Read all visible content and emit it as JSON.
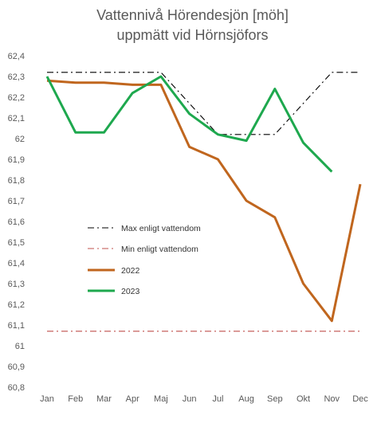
{
  "chart_data": {
    "type": "line",
    "title_lines": [
      "Vattennivå Hörendesjön [möh]",
      "uppmätt vid Hörnsjöfors"
    ],
    "categories": [
      "Jan",
      "Feb",
      "Mar",
      "Apr",
      "Maj",
      "Jun",
      "Jul",
      "Aug",
      "Sep",
      "Okt",
      "Nov",
      "Dec"
    ],
    "ylim": [
      60.8,
      62.4
    ],
    "yticks": [
      "62,4",
      "62,3",
      "62,2",
      "62,1",
      "62",
      "61,9",
      "61,8",
      "61,7",
      "61,6",
      "61,5",
      "61,4",
      "61,3",
      "61,2",
      "61,1",
      "61",
      "60,9",
      "60,8"
    ],
    "ytick_values": [
      62.4,
      62.3,
      62.2,
      62.1,
      62.0,
      61.9,
      61.8,
      61.7,
      61.6,
      61.5,
      61.4,
      61.3,
      61.2,
      61.1,
      61.0,
      60.9,
      60.8
    ],
    "grid": false,
    "legend_placement": "left",
    "series": [
      {
        "name": "Max enligt vattendom",
        "color": "#000000",
        "style": "dash-dot",
        "values": [
          62.32,
          62.32,
          62.32,
          62.32,
          62.32,
          62.17,
          62.02,
          62.02,
          62.02,
          62.17,
          62.32,
          62.32
        ]
      },
      {
        "name": "Min enligt vattendom",
        "color": "#c0504d",
        "style": "dash-dot",
        "values": [
          61.07,
          61.07,
          61.07,
          61.07,
          61.07,
          61.07,
          61.07,
          61.07,
          61.07,
          61.07,
          61.07,
          61.07
        ]
      },
      {
        "name": "2022",
        "color": "#c0661e",
        "style": "solid",
        "values": [
          62.28,
          62.27,
          62.27,
          62.26,
          62.26,
          61.96,
          61.9,
          61.7,
          61.62,
          61.3,
          61.12,
          61.78
        ]
      },
      {
        "name": "2023",
        "color": "#1ea84e",
        "style": "solid",
        "values": [
          62.3,
          62.03,
          62.03,
          62.22,
          62.3,
          62.12,
          62.02,
          61.99,
          62.24,
          61.98,
          61.84,
          null
        ]
      }
    ]
  }
}
